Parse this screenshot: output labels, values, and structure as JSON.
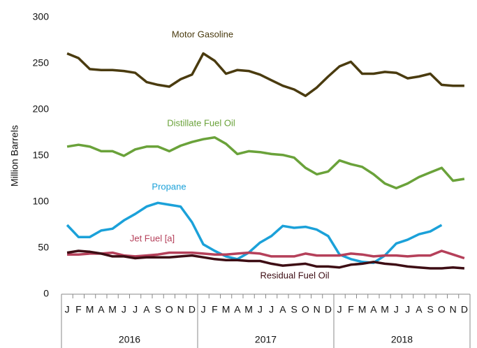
{
  "chart_data": {
    "type": "line",
    "y_label": "Million Barrels",
    "ylim": [
      0,
      300
    ],
    "yticks": [
      0,
      50,
      100,
      150,
      200,
      250,
      300
    ],
    "categories": [
      "J",
      "F",
      "M",
      "A",
      "M",
      "J",
      "J",
      "A",
      "S",
      "O",
      "N",
      "D",
      "J",
      "F",
      "M",
      "A",
      "M",
      "J",
      "J",
      "A",
      "S",
      "O",
      "N",
      "D",
      "J",
      "F",
      "M",
      "A",
      "M",
      "J",
      "J",
      "A",
      "S",
      "O",
      "N",
      "D"
    ],
    "years": [
      "2016",
      "2017",
      "2018"
    ],
    "series": [
      {
        "name": "Motor Gasoline",
        "color": "#4a3b0f",
        "values": [
          261,
          256,
          244,
          243,
          243,
          242,
          240,
          230,
          227,
          225,
          233,
          238,
          261,
          253,
          239,
          243,
          242,
          238,
          232,
          226,
          222,
          215,
          224,
          236,
          247,
          252,
          239,
          239,
          241,
          240,
          234,
          236,
          239,
          227,
          226,
          226
        ]
      },
      {
        "name": "Distillate Fuel Oil",
        "color": "#6aa23a",
        "values": [
          160,
          162,
          160,
          155,
          155,
          150,
          157,
          160,
          160,
          155,
          161,
          165,
          168,
          170,
          163,
          152,
          155,
          154,
          152,
          151,
          148,
          137,
          130,
          133,
          145,
          141,
          138,
          130,
          120,
          115,
          120,
          127,
          132,
          137,
          123,
          125
        ]
      },
      {
        "name": "Propane",
        "color": "#1ba1d9",
        "values": [
          75,
          62,
          62,
          69,
          71,
          80,
          87,
          95,
          99,
          97,
          95,
          78,
          54,
          47,
          41,
          38,
          45,
          56,
          63,
          74,
          72,
          73,
          70,
          63,
          43,
          38,
          35,
          34,
          42,
          55,
          59,
          65,
          68,
          75,
          null,
          null
        ]
      },
      {
        "name": "Jet Fuel [a]",
        "color": "#b5405a",
        "values": [
          43,
          43,
          44,
          44,
          45,
          42,
          41,
          42,
          43,
          45,
          45,
          45,
          44,
          43,
          43,
          44,
          45,
          44,
          41,
          41,
          41,
          44,
          42,
          42,
          42,
          44,
          43,
          41,
          42,
          42,
          41,
          42,
          42,
          47,
          43,
          39
        ]
      },
      {
        "name": "Residual Fuel Oil",
        "color": "#3d0d14",
        "values": [
          45,
          47,
          46,
          44,
          41,
          41,
          39,
          40,
          40,
          40,
          41,
          42,
          40,
          38,
          37,
          37,
          36,
          36,
          33,
          31,
          32,
          33,
          30,
          30,
          29,
          32,
          33,
          35,
          33,
          32,
          30,
          29,
          28,
          28,
          29,
          28
        ]
      }
    ]
  }
}
